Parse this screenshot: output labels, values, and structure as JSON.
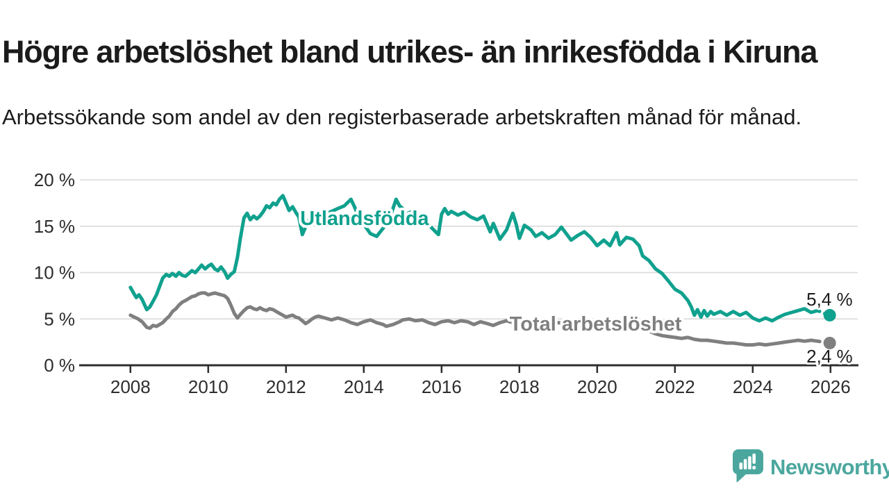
{
  "header": {
    "title": "Högre arbetslöshet bland utrikes- än inrikesfödda i Kiruna",
    "subtitle": "Arbetssökande som andel av den registerbaserade arbetskraften månad för månad."
  },
  "footer": {
    "brand": "Newsworthy",
    "brand_color": "#4ba79e"
  },
  "colors": {
    "foreign_born_line": "#10a18e",
    "total_line": "#7f7f7f",
    "axis_text": "#2d2d2d",
    "gridline": "#d7d7d7",
    "value_label_text": "#1c1c1c"
  },
  "chart_data": {
    "type": "line",
    "title": "Högre arbetslöshet bland utrikes- än inrikesfödda i Kiruna",
    "xlabel": "",
    "ylabel": "",
    "grid": "horizontal",
    "legend_position": "inline-labels",
    "x_axis": {
      "range": [
        2006.7,
        2026.7
      ],
      "tick_values": [
        2008,
        2010,
        2012,
        2014,
        2016,
        2018,
        2020,
        2022,
        2024,
        2026
      ],
      "tick_labels": [
        "2008",
        "2010",
        "2012",
        "2014",
        "2016",
        "2018",
        "2020",
        "2022",
        "2024",
        "2026"
      ]
    },
    "y_axis": {
      "range": [
        0,
        20
      ],
      "tick_values": [
        0,
        5,
        10,
        15,
        20
      ],
      "tick_labels": [
        "0 %",
        "5 %",
        "10 %",
        "15 %",
        "20 %"
      ]
    },
    "series": [
      {
        "name": "Total arbetslöshet",
        "color": "#7f7f7f",
        "end_value": 2.4,
        "end_label": "2,4 %",
        "end_label_position": "below",
        "label_anchor": {
          "year": 2019.96,
          "value": 4.42
        },
        "points": [
          [
            2008.0,
            5.4
          ],
          [
            2008.1,
            5.2
          ],
          [
            2008.2,
            5.0
          ],
          [
            2008.3,
            4.7
          ],
          [
            2008.42,
            4.1
          ],
          [
            2008.5,
            4.0
          ],
          [
            2008.58,
            4.3
          ],
          [
            2008.67,
            4.2
          ],
          [
            2008.75,
            4.4
          ],
          [
            2008.83,
            4.6
          ],
          [
            2008.92,
            5.0
          ],
          [
            2009.0,
            5.3
          ],
          [
            2009.08,
            5.8
          ],
          [
            2009.17,
            6.1
          ],
          [
            2009.25,
            6.5
          ],
          [
            2009.33,
            6.8
          ],
          [
            2009.42,
            7.0
          ],
          [
            2009.5,
            7.2
          ],
          [
            2009.58,
            7.4
          ],
          [
            2009.67,
            7.5
          ],
          [
            2009.75,
            7.7
          ],
          [
            2009.83,
            7.8
          ],
          [
            2009.92,
            7.8
          ],
          [
            2010.0,
            7.6
          ],
          [
            2010.08,
            7.7
          ],
          [
            2010.17,
            7.8
          ],
          [
            2010.25,
            7.7
          ],
          [
            2010.33,
            7.6
          ],
          [
            2010.42,
            7.5
          ],
          [
            2010.5,
            7.2
          ],
          [
            2010.58,
            6.5
          ],
          [
            2010.67,
            5.6
          ],
          [
            2010.75,
            5.1
          ],
          [
            2010.83,
            5.5
          ],
          [
            2010.92,
            5.9
          ],
          [
            2011.0,
            6.2
          ],
          [
            2011.08,
            6.3
          ],
          [
            2011.17,
            6.1
          ],
          [
            2011.25,
            6.0
          ],
          [
            2011.33,
            6.2
          ],
          [
            2011.42,
            6.0
          ],
          [
            2011.5,
            5.9
          ],
          [
            2011.58,
            6.1
          ],
          [
            2011.67,
            6.0
          ],
          [
            2011.75,
            5.8
          ],
          [
            2011.83,
            5.6
          ],
          [
            2011.92,
            5.4
          ],
          [
            2012.0,
            5.2
          ],
          [
            2012.08,
            5.3
          ],
          [
            2012.17,
            5.4
          ],
          [
            2012.25,
            5.2
          ],
          [
            2012.33,
            5.1
          ],
          [
            2012.42,
            4.8
          ],
          [
            2012.5,
            4.5
          ],
          [
            2012.58,
            4.7
          ],
          [
            2012.67,
            5.0
          ],
          [
            2012.75,
            5.2
          ],
          [
            2012.83,
            5.3
          ],
          [
            2012.92,
            5.2
          ],
          [
            2013.0,
            5.1
          ],
          [
            2013.17,
            4.9
          ],
          [
            2013.33,
            5.1
          ],
          [
            2013.5,
            4.9
          ],
          [
            2013.67,
            4.6
          ],
          [
            2013.83,
            4.4
          ],
          [
            2014.0,
            4.7
          ],
          [
            2014.17,
            4.9
          ],
          [
            2014.33,
            4.6
          ],
          [
            2014.5,
            4.4
          ],
          [
            2014.58,
            4.2
          ],
          [
            2014.75,
            4.4
          ],
          [
            2014.92,
            4.7
          ],
          [
            2015.0,
            4.9
          ],
          [
            2015.17,
            5.0
          ],
          [
            2015.33,
            4.8
          ],
          [
            2015.5,
            4.9
          ],
          [
            2015.67,
            4.6
          ],
          [
            2015.83,
            4.4
          ],
          [
            2016.0,
            4.7
          ],
          [
            2016.17,
            4.8
          ],
          [
            2016.33,
            4.6
          ],
          [
            2016.5,
            4.8
          ],
          [
            2016.67,
            4.7
          ],
          [
            2016.83,
            4.4
          ],
          [
            2017.0,
            4.7
          ],
          [
            2017.17,
            4.5
          ],
          [
            2017.33,
            4.3
          ],
          [
            2017.5,
            4.6
          ],
          [
            2017.67,
            4.8
          ],
          [
            2017.83,
            4.6
          ],
          [
            2018.0,
            4.8
          ],
          [
            2018.17,
            4.7
          ],
          [
            2018.33,
            4.5
          ],
          [
            2018.5,
            4.6
          ],
          [
            2018.67,
            4.4
          ],
          [
            2018.83,
            4.5
          ],
          [
            2019.0,
            4.6
          ],
          [
            2019.25,
            4.5
          ],
          [
            2019.5,
            4.4
          ],
          [
            2019.75,
            4.5
          ],
          [
            2020.0,
            4.6
          ],
          [
            2020.25,
            4.5
          ],
          [
            2020.5,
            4.6
          ],
          [
            2020.75,
            4.5
          ],
          [
            2021.0,
            4.3
          ],
          [
            2021.17,
            4.0
          ],
          [
            2021.33,
            3.7
          ],
          [
            2021.5,
            3.4
          ],
          [
            2021.67,
            3.2
          ],
          [
            2021.83,
            3.1
          ],
          [
            2022.0,
            3.0
          ],
          [
            2022.17,
            2.9
          ],
          [
            2022.33,
            3.0
          ],
          [
            2022.5,
            2.8
          ],
          [
            2022.67,
            2.7
          ],
          [
            2022.83,
            2.7
          ],
          [
            2023.0,
            2.6
          ],
          [
            2023.17,
            2.5
          ],
          [
            2023.33,
            2.4
          ],
          [
            2023.5,
            2.4
          ],
          [
            2023.67,
            2.3
          ],
          [
            2023.83,
            2.2
          ],
          [
            2024.0,
            2.2
          ],
          [
            2024.17,
            2.3
          ],
          [
            2024.33,
            2.2
          ],
          [
            2024.5,
            2.3
          ],
          [
            2024.67,
            2.4
          ],
          [
            2024.83,
            2.5
          ],
          [
            2025.0,
            2.6
          ],
          [
            2025.17,
            2.7
          ],
          [
            2025.33,
            2.6
          ],
          [
            2025.5,
            2.7
          ],
          [
            2025.67,
            2.6
          ],
          [
            2025.83,
            2.5
          ],
          [
            2025.98,
            2.4
          ]
        ]
      },
      {
        "name": "Utlandsfödda",
        "color": "#10a18e",
        "end_value": 5.4,
        "end_label": "5,4 %",
        "end_label_position": "above",
        "label_anchor": {
          "year": 2014.02,
          "value": 15.8
        },
        "points": [
          [
            2008.0,
            8.4
          ],
          [
            2008.08,
            7.8
          ],
          [
            2008.15,
            7.3
          ],
          [
            2008.22,
            7.6
          ],
          [
            2008.3,
            7.1
          ],
          [
            2008.42,
            6.0
          ],
          [
            2008.5,
            6.3
          ],
          [
            2008.58,
            6.9
          ],
          [
            2008.67,
            7.6
          ],
          [
            2008.75,
            8.5
          ],
          [
            2008.83,
            9.4
          ],
          [
            2008.92,
            9.8
          ],
          [
            2009.0,
            9.6
          ],
          [
            2009.08,
            9.9
          ],
          [
            2009.17,
            9.6
          ],
          [
            2009.25,
            10.0
          ],
          [
            2009.33,
            9.7
          ],
          [
            2009.42,
            9.6
          ],
          [
            2009.5,
            9.9
          ],
          [
            2009.58,
            10.2
          ],
          [
            2009.67,
            10.0
          ],
          [
            2009.75,
            10.4
          ],
          [
            2009.83,
            10.8
          ],
          [
            2009.92,
            10.4
          ],
          [
            2010.0,
            10.7
          ],
          [
            2010.08,
            10.9
          ],
          [
            2010.17,
            10.4
          ],
          [
            2010.25,
            10.2
          ],
          [
            2010.33,
            10.6
          ],
          [
            2010.42,
            10.1
          ],
          [
            2010.5,
            9.4
          ],
          [
            2010.58,
            9.8
          ],
          [
            2010.67,
            10.1
          ],
          [
            2010.75,
            11.6
          ],
          [
            2010.83,
            13.8
          ],
          [
            2010.92,
            15.9
          ],
          [
            2011.0,
            16.4
          ],
          [
            2011.08,
            15.7
          ],
          [
            2011.17,
            16.1
          ],
          [
            2011.25,
            15.8
          ],
          [
            2011.33,
            16.1
          ],
          [
            2011.42,
            16.6
          ],
          [
            2011.5,
            17.2
          ],
          [
            2011.58,
            17.0
          ],
          [
            2011.67,
            17.5
          ],
          [
            2011.75,
            17.3
          ],
          [
            2011.83,
            17.9
          ],
          [
            2011.92,
            18.3
          ],
          [
            2012.0,
            17.5
          ],
          [
            2012.08,
            16.7
          ],
          [
            2012.17,
            17.1
          ],
          [
            2012.25,
            16.5
          ],
          [
            2012.33,
            16.0
          ],
          [
            2012.42,
            14.1
          ],
          [
            2012.5,
            14.9
          ],
          [
            2012.58,
            15.6
          ],
          [
            2012.67,
            16.1
          ],
          [
            2012.75,
            16.4
          ],
          [
            2012.83,
            16.2
          ],
          [
            2012.92,
            16.4
          ],
          [
            2013.0,
            16.3
          ],
          [
            2013.17,
            16.6
          ],
          [
            2013.33,
            16.9
          ],
          [
            2013.5,
            17.2
          ],
          [
            2013.67,
            17.9
          ],
          [
            2013.75,
            17.2
          ],
          [
            2013.83,
            16.4
          ],
          [
            2013.92,
            15.8
          ],
          [
            2014.0,
            15.2
          ],
          [
            2014.17,
            14.2
          ],
          [
            2014.33,
            13.9
          ],
          [
            2014.5,
            14.8
          ],
          [
            2014.67,
            15.9
          ],
          [
            2014.83,
            17.9
          ],
          [
            2014.92,
            17.2
          ],
          [
            2015.0,
            16.9
          ],
          [
            2015.08,
            16.3
          ],
          [
            2015.25,
            16.6
          ],
          [
            2015.42,
            16.0
          ],
          [
            2015.58,
            15.6
          ],
          [
            2015.75,
            14.8
          ],
          [
            2015.92,
            14.1
          ],
          [
            2016.0,
            16.3
          ],
          [
            2016.08,
            16.9
          ],
          [
            2016.17,
            16.3
          ],
          [
            2016.25,
            16.6
          ],
          [
            2016.42,
            16.2
          ],
          [
            2016.58,
            16.5
          ],
          [
            2016.75,
            16.0
          ],
          [
            2016.92,
            15.7
          ],
          [
            2017.0,
            15.9
          ],
          [
            2017.08,
            16.1
          ],
          [
            2017.25,
            14.4
          ],
          [
            2017.33,
            15.3
          ],
          [
            2017.5,
            13.6
          ],
          [
            2017.67,
            14.6
          ],
          [
            2017.83,
            16.4
          ],
          [
            2017.92,
            15.2
          ],
          [
            2018.0,
            13.7
          ],
          [
            2018.13,
            15.1
          ],
          [
            2018.3,
            14.6
          ],
          [
            2018.42,
            13.9
          ],
          [
            2018.58,
            14.3
          ],
          [
            2018.75,
            13.7
          ],
          [
            2018.92,
            14.1
          ],
          [
            2019.08,
            14.9
          ],
          [
            2019.17,
            14.4
          ],
          [
            2019.33,
            13.5
          ],
          [
            2019.5,
            14.0
          ],
          [
            2019.67,
            14.4
          ],
          [
            2019.83,
            13.8
          ],
          [
            2020.0,
            12.9
          ],
          [
            2020.17,
            13.5
          ],
          [
            2020.33,
            12.9
          ],
          [
            2020.5,
            14.3
          ],
          [
            2020.58,
            13.0
          ],
          [
            2020.75,
            13.8
          ],
          [
            2020.92,
            13.6
          ],
          [
            2021.08,
            12.9
          ],
          [
            2021.17,
            11.8
          ],
          [
            2021.33,
            11.3
          ],
          [
            2021.5,
            10.4
          ],
          [
            2021.67,
            9.9
          ],
          [
            2021.83,
            9.1
          ],
          [
            2022.0,
            8.2
          ],
          [
            2022.17,
            7.8
          ],
          [
            2022.33,
            7.0
          ],
          [
            2022.42,
            6.3
          ],
          [
            2022.5,
            5.4
          ],
          [
            2022.58,
            6.0
          ],
          [
            2022.67,
            5.2
          ],
          [
            2022.75,
            5.9
          ],
          [
            2022.83,
            5.3
          ],
          [
            2022.92,
            5.8
          ],
          [
            2023.0,
            5.5
          ],
          [
            2023.17,
            5.8
          ],
          [
            2023.33,
            5.4
          ],
          [
            2023.5,
            5.8
          ],
          [
            2023.67,
            5.4
          ],
          [
            2023.83,
            5.7
          ],
          [
            2024.0,
            5.1
          ],
          [
            2024.17,
            4.8
          ],
          [
            2024.33,
            5.1
          ],
          [
            2024.5,
            4.8
          ],
          [
            2024.67,
            5.2
          ],
          [
            2024.83,
            5.5
          ],
          [
            2025.0,
            5.7
          ],
          [
            2025.17,
            5.9
          ],
          [
            2025.33,
            6.1
          ],
          [
            2025.5,
            5.7
          ],
          [
            2025.67,
            5.9
          ],
          [
            2025.83,
            5.6
          ],
          [
            2025.98,
            5.4
          ]
        ]
      }
    ]
  }
}
